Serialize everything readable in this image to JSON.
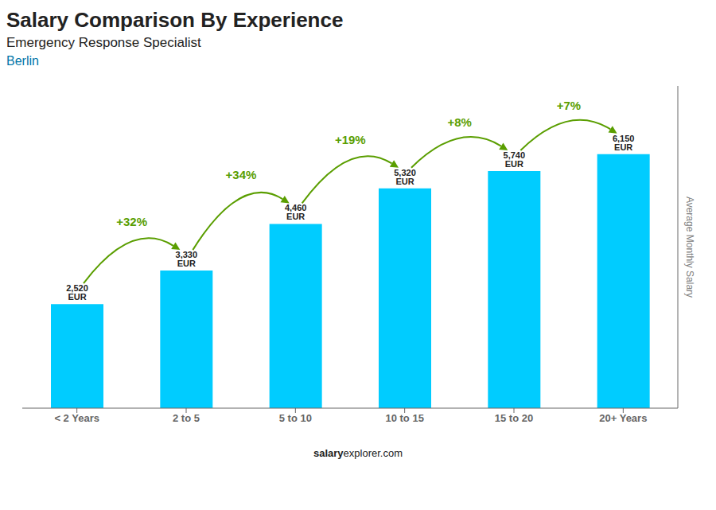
{
  "chart_data": {
    "type": "bar",
    "title": "Salary Comparison By Experience",
    "subtitle": "Emergency Response Specialist",
    "categories": [
      "< 2 Years",
      "2 to 5",
      "5 to 10",
      "10 to 15",
      "15 to 20",
      "20+ Years"
    ],
    "values": [
      2520,
      3330,
      4460,
      5320,
      5740,
      6150
    ],
    "value_labels": [
      "2,520 EUR",
      "3,330 EUR",
      "4,460 EUR",
      "5,320 EUR",
      "5,740 EUR",
      "6,150 EUR"
    ],
    "data_labels": true,
    "y_label": "Average Monthly Salary",
    "ylim": [
      0,
      7800
    ],
    "tick_labels": "x",
    "grid": false,
    "color": "#00CCFF",
    "annotations": {
      "city": "Berlin",
      "pct_changes": [
        "+32%",
        "+34%",
        "+19%",
        "+8%",
        "+7%"
      ],
      "watermark": [
        "salary",
        "explorer.com"
      ]
    }
  }
}
